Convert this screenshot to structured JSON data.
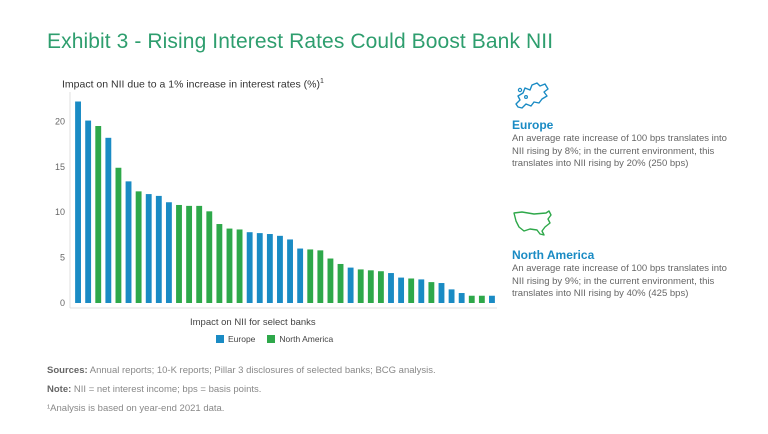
{
  "title": "Exhibit 3 - Rising Interest Rates Could Boost Bank NII",
  "chart_data": {
    "type": "bar",
    "title": "Impact on NII due to a 1% increase in interest rates (%)",
    "title_footnote": "1",
    "xlabel": "Impact on NII for select banks",
    "ylabel": "",
    "ylim": [
      0,
      22.5
    ],
    "yticks": [
      0,
      5,
      10,
      15,
      20
    ],
    "grid": false,
    "legend_position": "bottom",
    "series": [
      {
        "name": "Europe",
        "color": "#1a8bc4"
      },
      {
        "name": "North America",
        "color": "#2ea84a"
      }
    ],
    "bars": [
      {
        "v": 22.2,
        "s": 0
      },
      {
        "v": 20.1,
        "s": 0
      },
      {
        "v": 19.5,
        "s": 1
      },
      {
        "v": 18.2,
        "s": 0
      },
      {
        "v": 14.9,
        "s": 1
      },
      {
        "v": 13.4,
        "s": 0
      },
      {
        "v": 12.3,
        "s": 1
      },
      {
        "v": 12.0,
        "s": 0
      },
      {
        "v": 11.8,
        "s": 0
      },
      {
        "v": 11.1,
        "s": 0
      },
      {
        "v": 10.8,
        "s": 1
      },
      {
        "v": 10.7,
        "s": 1
      },
      {
        "v": 10.7,
        "s": 1
      },
      {
        "v": 10.1,
        "s": 1
      },
      {
        "v": 8.7,
        "s": 1
      },
      {
        "v": 8.2,
        "s": 1
      },
      {
        "v": 8.1,
        "s": 1
      },
      {
        "v": 7.8,
        "s": 0
      },
      {
        "v": 7.7,
        "s": 0
      },
      {
        "v": 7.6,
        "s": 0
      },
      {
        "v": 7.4,
        "s": 0
      },
      {
        "v": 7.0,
        "s": 0
      },
      {
        "v": 6.0,
        "s": 0
      },
      {
        "v": 5.9,
        "s": 1
      },
      {
        "v": 5.8,
        "s": 1
      },
      {
        "v": 4.9,
        "s": 1
      },
      {
        "v": 4.3,
        "s": 1
      },
      {
        "v": 3.9,
        "s": 0
      },
      {
        "v": 3.7,
        "s": 1
      },
      {
        "v": 3.6,
        "s": 1
      },
      {
        "v": 3.5,
        "s": 1
      },
      {
        "v": 3.3,
        "s": 0
      },
      {
        "v": 2.8,
        "s": 0
      },
      {
        "v": 2.7,
        "s": 1
      },
      {
        "v": 2.6,
        "s": 0
      },
      {
        "v": 2.3,
        "s": 1
      },
      {
        "v": 2.2,
        "s": 0
      },
      {
        "v": 1.5,
        "s": 0
      },
      {
        "v": 1.1,
        "s": 0
      },
      {
        "v": 0.8,
        "s": 1
      },
      {
        "v": 0.8,
        "s": 1
      },
      {
        "v": 0.8,
        "s": 0
      }
    ]
  },
  "regions": {
    "europe": {
      "name": "Europe",
      "icon": "europe-map-icon",
      "text": "An average rate increase of 100 bps translates into NII rising by 8%; in the current environment, this translates into NII rising by 20% (250 bps)"
    },
    "north_america": {
      "name": "North America",
      "icon": "north-america-map-icon",
      "text": "An average rate increase of 100 bps translates into NII rising by 9%; in the current environment, this translates into NII rising by 40% (425 bps)"
    }
  },
  "notes": {
    "sources_label": "Sources:",
    "sources_text": "Annual reports; 10-K reports; Pillar 3 disclosures of selected banks; BCG analysis.",
    "note_label": "Note:",
    "note_text": "NII = net interest income; bps = basis points.",
    "footnote": "¹Analysis is based on year-end 2021 data."
  }
}
